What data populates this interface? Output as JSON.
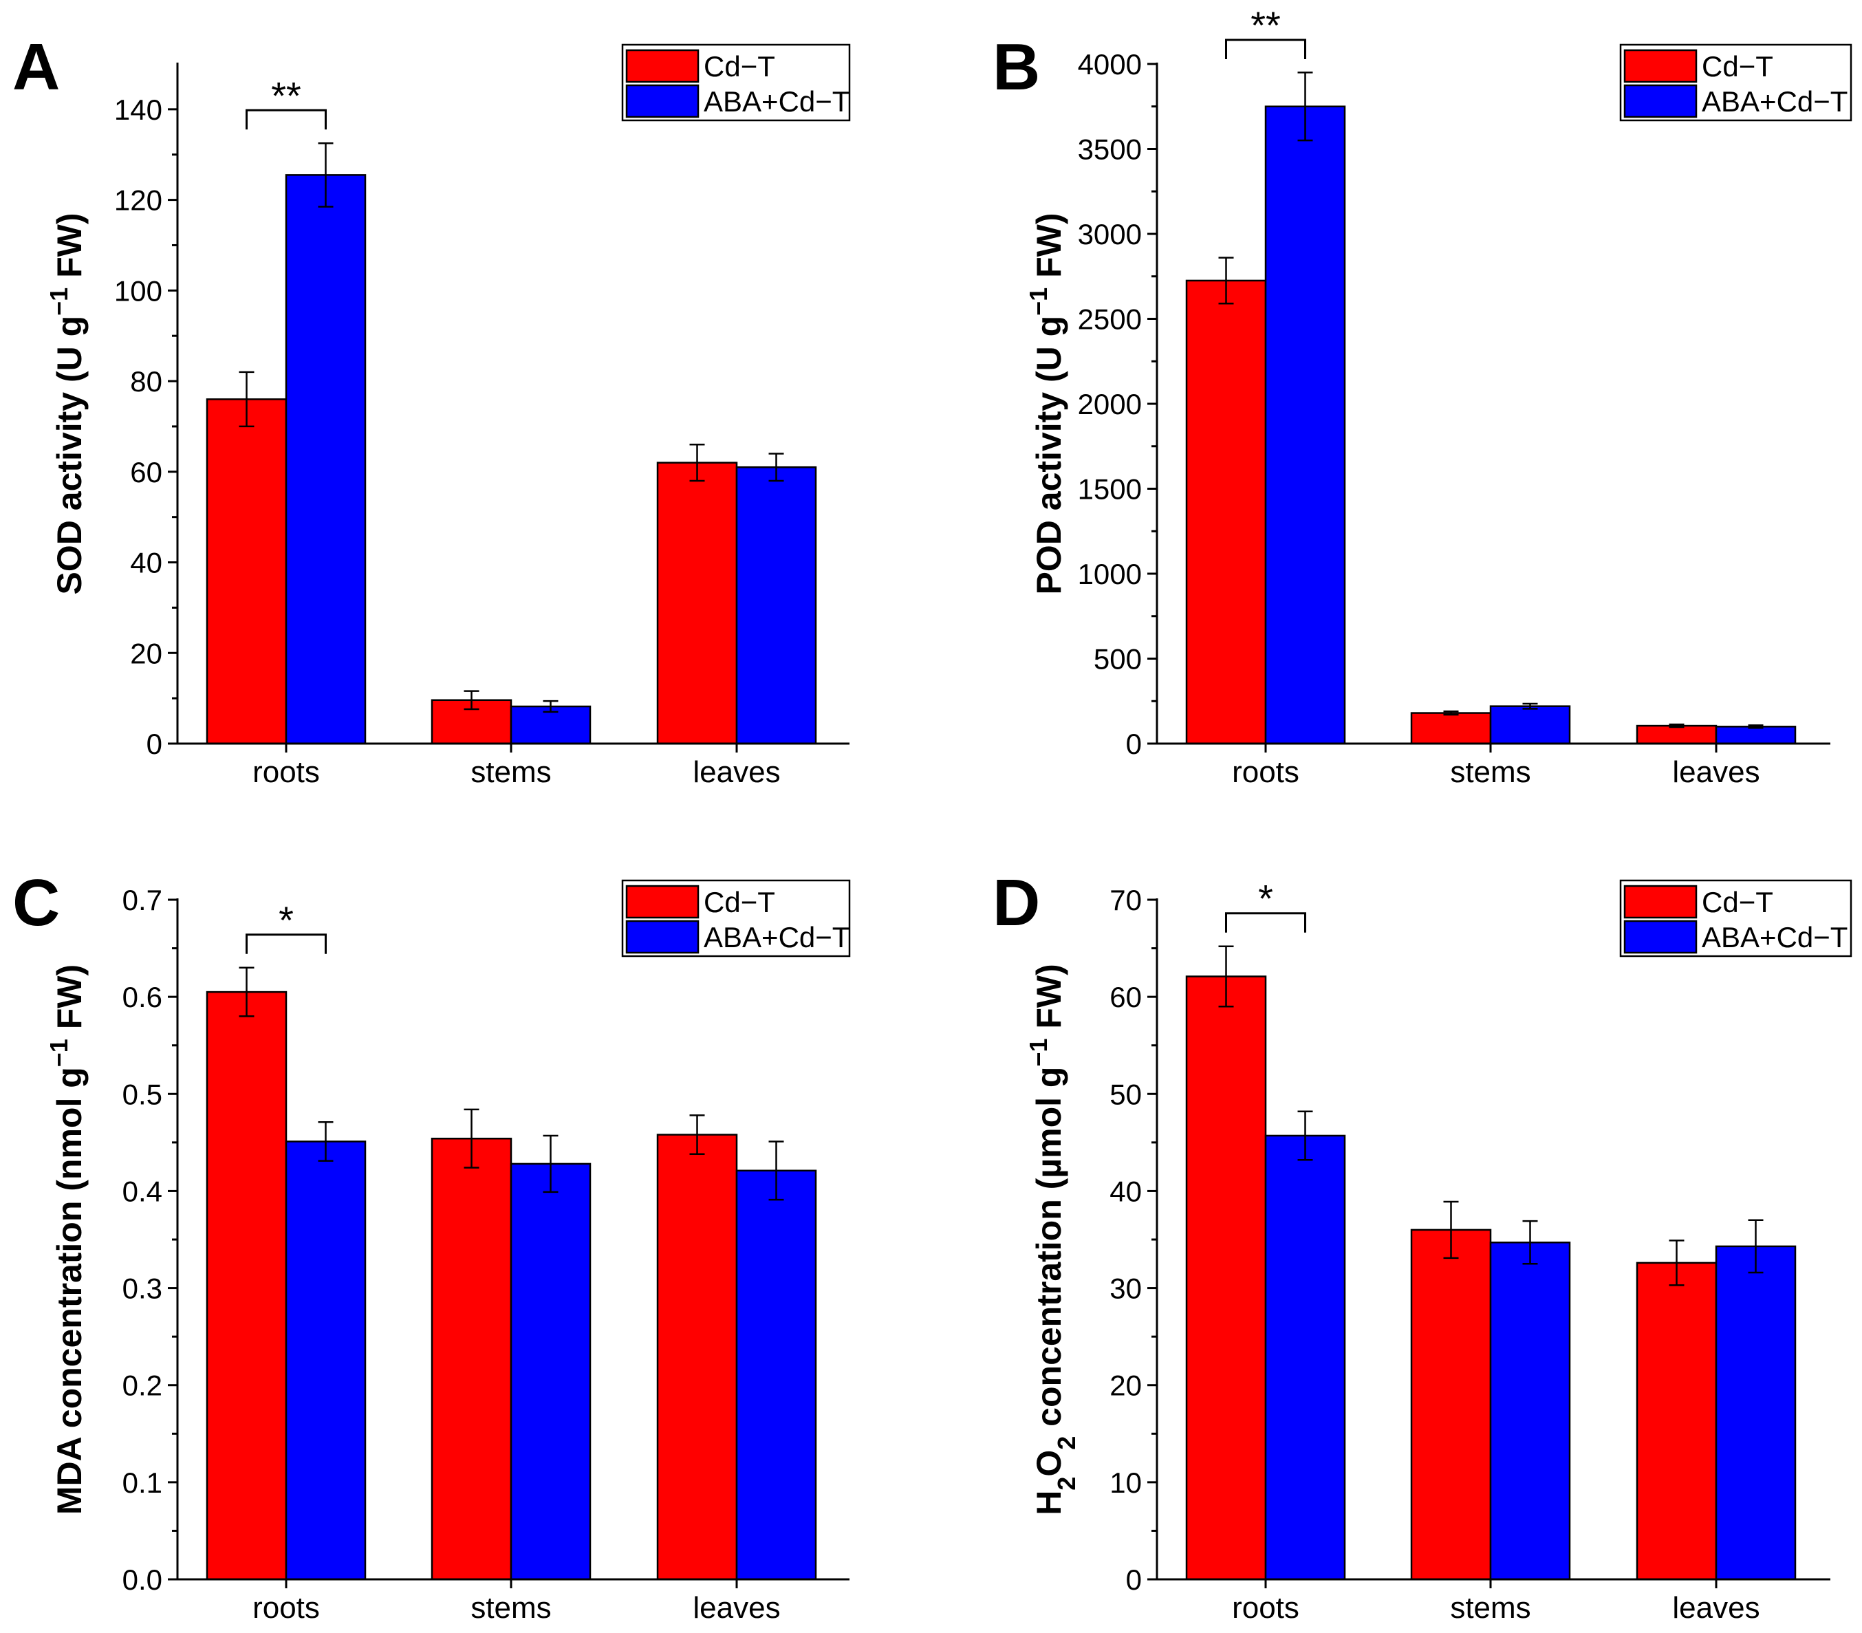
{
  "colors": {
    "cd_t": "#ff0000",
    "aba_cd_t": "#0000ff"
  },
  "chart_data": [
    {
      "panel": "A",
      "type": "bar",
      "categories": [
        "roots",
        "stems",
        "leaves"
      ],
      "series": [
        {
          "name": "Cd−T",
          "values": [
            76,
            9.6,
            62
          ],
          "errors": [
            6,
            2,
            4
          ]
        },
        {
          "name": "ABA+Cd−T",
          "values": [
            125.5,
            8.2,
            61
          ],
          "errors": [
            7,
            1.2,
            3
          ]
        }
      ],
      "ylabel_parts": [
        "SOD activity (U g",
        "−1",
        " FW)"
      ],
      "ylim": [
        0,
        150
      ],
      "yticks": [
        0,
        20,
        40,
        60,
        80,
        100,
        120,
        140
      ],
      "ytick_labels": [
        "0",
        "20",
        "40",
        "60",
        "80",
        "100",
        "120",
        "140"
      ],
      "significance": {
        "category": "roots",
        "label": "**"
      },
      "legend": "top-right"
    },
    {
      "panel": "B",
      "type": "bar",
      "categories": [
        "roots",
        "stems",
        "leaves"
      ],
      "series": [
        {
          "name": "Cd−T",
          "values": [
            2725,
            180,
            105
          ],
          "errors": [
            135,
            10,
            8
          ]
        },
        {
          "name": "ABA+Cd−T",
          "values": [
            3750,
            220,
            100
          ],
          "errors": [
            200,
            15,
            8
          ]
        }
      ],
      "ylabel_parts": [
        "POD activity (U g",
        "−1",
        " FW)"
      ],
      "ylim": [
        0,
        4000
      ],
      "yticks": [
        0,
        500,
        1000,
        1500,
        2000,
        2500,
        3000,
        3500,
        4000
      ],
      "ytick_labels": [
        "0",
        "500",
        "1000",
        "1500",
        "2000",
        "2500",
        "3000",
        "3500",
        "4000"
      ],
      "significance": {
        "category": "roots",
        "label": "**"
      },
      "legend": "top-right"
    },
    {
      "panel": "C",
      "type": "bar",
      "categories": [
        "roots",
        "stems",
        "leaves"
      ],
      "series": [
        {
          "name": "Cd−T",
          "values": [
            0.605,
            0.454,
            0.458
          ],
          "errors": [
            0.025,
            0.03,
            0.02
          ]
        },
        {
          "name": "ABA+Cd−T",
          "values": [
            0.451,
            0.428,
            0.421
          ],
          "errors": [
            0.02,
            0.029,
            0.03
          ]
        }
      ],
      "ylabel_parts": [
        "MDA concentration (nmol g",
        "−1",
        " FW)"
      ],
      "ylim": [
        0,
        0.7
      ],
      "yticks": [
        0,
        0.1,
        0.2,
        0.3,
        0.4,
        0.5,
        0.6,
        0.7
      ],
      "ytick_labels": [
        "0.0",
        "0.1",
        "0.2",
        "0.3",
        "0.4",
        "0.5",
        "0.6",
        "0.7"
      ],
      "significance": {
        "category": "roots",
        "label": "*"
      },
      "legend": "top-right"
    },
    {
      "panel": "D",
      "type": "bar",
      "categories": [
        "roots",
        "stems",
        "leaves"
      ],
      "series": [
        {
          "name": "Cd−T",
          "values": [
            62.1,
            36,
            32.6
          ],
          "errors": [
            3.1,
            2.9,
            2.3
          ]
        },
        {
          "name": "ABA+Cd−T",
          "values": [
            45.7,
            34.7,
            34.3
          ],
          "errors": [
            2.5,
            2.2,
            2.7
          ]
        }
      ],
      "ylabel_parts": [
        "H",
        "2",
        "O",
        "2",
        " concentration (µmol g",
        "−1",
        " FW)"
      ],
      "ylim": [
        0,
        70
      ],
      "yticks": [
        0,
        10,
        20,
        30,
        40,
        50,
        60,
        70
      ],
      "ytick_labels": [
        "0",
        "10",
        "20",
        "30",
        "40",
        "50",
        "60",
        "70"
      ],
      "significance": {
        "category": "roots",
        "label": "*"
      },
      "legend": "top-right"
    }
  ]
}
